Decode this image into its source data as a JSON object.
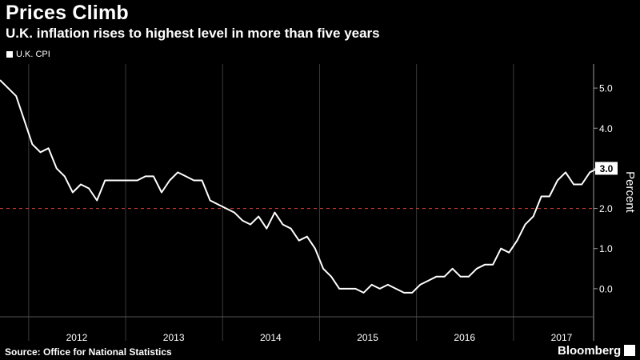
{
  "header": {
    "title": "Prices Climb",
    "subtitle": "U.K. inflation rises to highest level in more than five years"
  },
  "footer": {
    "source": "Source: Office for National Statistics",
    "brand": "Bloomberg"
  },
  "colors": {
    "background": "#000000",
    "line": "#ffffff",
    "grid": "#3a3a3a",
    "target_line": "#c0392b",
    "label_box": "#ffffff",
    "label_text": "#000000"
  },
  "chart_data": {
    "type": "line",
    "title": "Prices Climb",
    "subtitle": "U.K. inflation rises to highest level in more than five years",
    "ylabel": "Percent",
    "xlabel": "",
    "ylim": [
      -0.7,
      5.6
    ],
    "yticks": [
      0.0,
      1.0,
      2.0,
      3.0,
      4.0,
      5.0
    ],
    "ytick_labels": [
      "0.0",
      "1.0",
      "2.0",
      "3.0",
      "4.0",
      "5.0"
    ],
    "x_year_labels": [
      "2012",
      "2013",
      "2014",
      "2015",
      "2016",
      "2017"
    ],
    "reference_line": {
      "value": 2.0,
      "style": "dashed",
      "color": "#c0392b"
    },
    "last_value_label": "3.0",
    "grid": "vertical at year boundaries",
    "legend_position": "top-left",
    "series": [
      {
        "name": "U.K. CPI",
        "start": "2011-09",
        "frequency": "monthly",
        "values": [
          5.2,
          5.0,
          4.8,
          4.2,
          3.6,
          3.4,
          3.5,
          3.0,
          2.8,
          2.4,
          2.6,
          2.5,
          2.2,
          2.7,
          2.7,
          2.7,
          2.7,
          2.7,
          2.8,
          2.8,
          2.4,
          2.7,
          2.9,
          2.8,
          2.7,
          2.7,
          2.2,
          2.1,
          2.0,
          1.9,
          1.7,
          1.6,
          1.8,
          1.5,
          1.9,
          1.6,
          1.5,
          1.2,
          1.3,
          1.0,
          0.5,
          0.3,
          0.0,
          0.0,
          0.0,
          -0.1,
          0.1,
          0.0,
          0.1,
          0.0,
          -0.1,
          -0.1,
          0.1,
          0.2,
          0.3,
          0.3,
          0.5,
          0.3,
          0.3,
          0.5,
          0.6,
          0.6,
          1.0,
          0.9,
          1.2,
          1.6,
          1.8,
          2.3,
          2.3,
          2.7,
          2.9,
          2.6,
          2.6,
          2.9,
          3.0
        ]
      }
    ]
  }
}
